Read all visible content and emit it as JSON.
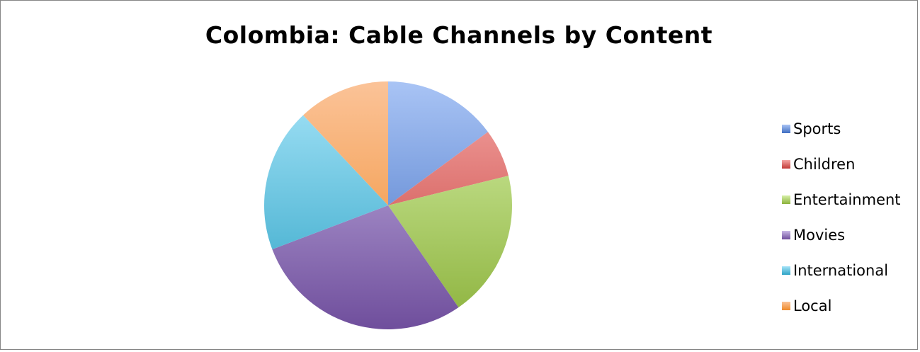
{
  "chart_data": {
    "type": "pie",
    "title": "Colombia: Cable Channels by Content",
    "legend_position": "right",
    "categories": [
      "Sports",
      "Children",
      "Entertainment",
      "Movies",
      "International",
      "Local"
    ],
    "values": [
      15.5,
      6.5,
      20,
      30,
      19.5,
      12.5
    ],
    "colors": {
      "Sports": [
        "#a9c4f5",
        "#3f6dc1"
      ],
      "Children": [
        "#f5a6a4",
        "#c23a36"
      ],
      "Entertainment": [
        "#d6f0a8",
        "#8cb23c"
      ],
      "Movies": [
        "#c8b8e6",
        "#6f4e9c"
      ],
      "International": [
        "#a6e4f8",
        "#2ea3c6"
      ],
      "Local": [
        "#fbc398",
        "#ef8a2a"
      ]
    },
    "start_angle_deg": 0,
    "direction": "clockwise"
  }
}
